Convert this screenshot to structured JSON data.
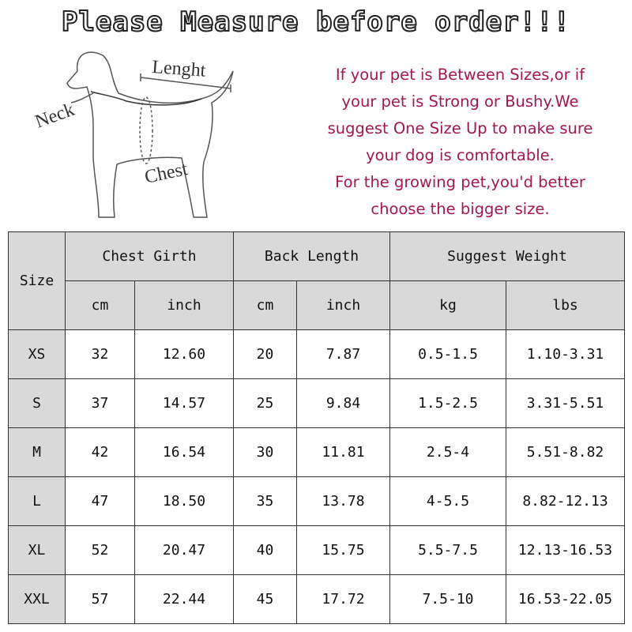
{
  "title": "Please Measure before order!!!",
  "diagram": {
    "labels": {
      "length": "Lenght",
      "neck": "Neck",
      "chest": "Chest"
    }
  },
  "note": [
    "If your pet is Between Sizes,or if",
    "your pet is Strong or Bushy.We",
    "suggest One Size Up to make sure",
    "your dog is comfortable.",
    "For the growing pet,you'd better",
    "choose the bigger size."
  ],
  "colors": {
    "note_text": "#a3174f",
    "header_bg": "#d9d9d9"
  },
  "table": {
    "size_header": "Size",
    "groups": [
      "Chest Girth",
      "Back Length",
      "Suggest Weight"
    ],
    "units": [
      "cm",
      "inch",
      "cm",
      "inch",
      "kg",
      "lbs"
    ],
    "rows": [
      [
        "XS",
        "32",
        "12.60",
        "20",
        "7.87",
        "0.5-1.5",
        "1.10-3.31"
      ],
      [
        "S",
        "37",
        "14.57",
        "25",
        "9.84",
        "1.5-2.5",
        "3.31-5.51"
      ],
      [
        "M",
        "42",
        "16.54",
        "30",
        "11.81",
        "2.5-4",
        "5.51-8.82"
      ],
      [
        "L",
        "47",
        "18.50",
        "35",
        "13.78",
        "4-5.5",
        "8.82-12.13"
      ],
      [
        "XL",
        "52",
        "20.47",
        "40",
        "15.75",
        "5.5-7.5",
        "12.13-16.53"
      ],
      [
        "XXL",
        "57",
        "22.44",
        "45",
        "17.72",
        "7.5-10",
        "16.53-22.05"
      ]
    ]
  }
}
